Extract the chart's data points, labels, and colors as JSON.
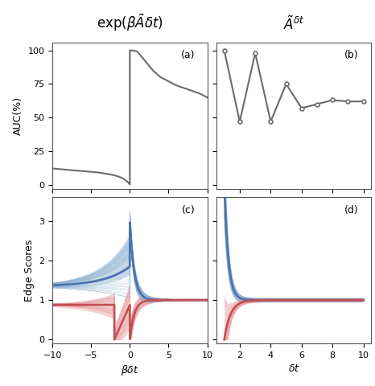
{
  "panel_labels": [
    "(a)",
    "(b)",
    "(c)",
    "(d)"
  ],
  "ylabel_top": "AUC(%)",
  "ylabel_bottom": "Edge Scores",
  "xlabel_left": "$\\beta\\delta t$",
  "xlabel_right": "$\\delta t$",
  "auc_a_x": [
    -10,
    -9,
    -8,
    -7,
    -6,
    -5,
    -4,
    -3,
    -2,
    -1,
    -0.5,
    -0.2,
    -0.05,
    0,
    0.001,
    0.05,
    0.5,
    1,
    2,
    3,
    4,
    5,
    6,
    7,
    8,
    9,
    10
  ],
  "auc_a_y": [
    12,
    11.5,
    11,
    10.5,
    10,
    9.5,
    9,
    8,
    7,
    5,
    3,
    1.5,
    0.5,
    0.2,
    100,
    100,
    100,
    99,
    92,
    85,
    80,
    77,
    74,
    72,
    70,
    68,
    65
  ],
  "auc_b_x": [
    1,
    2,
    3,
    4,
    5,
    6,
    7,
    8,
    9,
    10
  ],
  "auc_b_y": [
    100,
    47,
    98,
    47,
    75,
    57,
    60,
    63,
    62,
    62
  ],
  "gray_color": "#6b6b6b",
  "blue_color": "#4c72b0",
  "pink_color": "#c44e52",
  "blue_fill": "#7fa8cc",
  "pink_fill": "#e8a0a2",
  "background_color": "white",
  "col1_title": "exp($\\beta\\tilde{A}\\delta t$)",
  "col2_title": "$\\tilde{A}^{\\delta t}$"
}
